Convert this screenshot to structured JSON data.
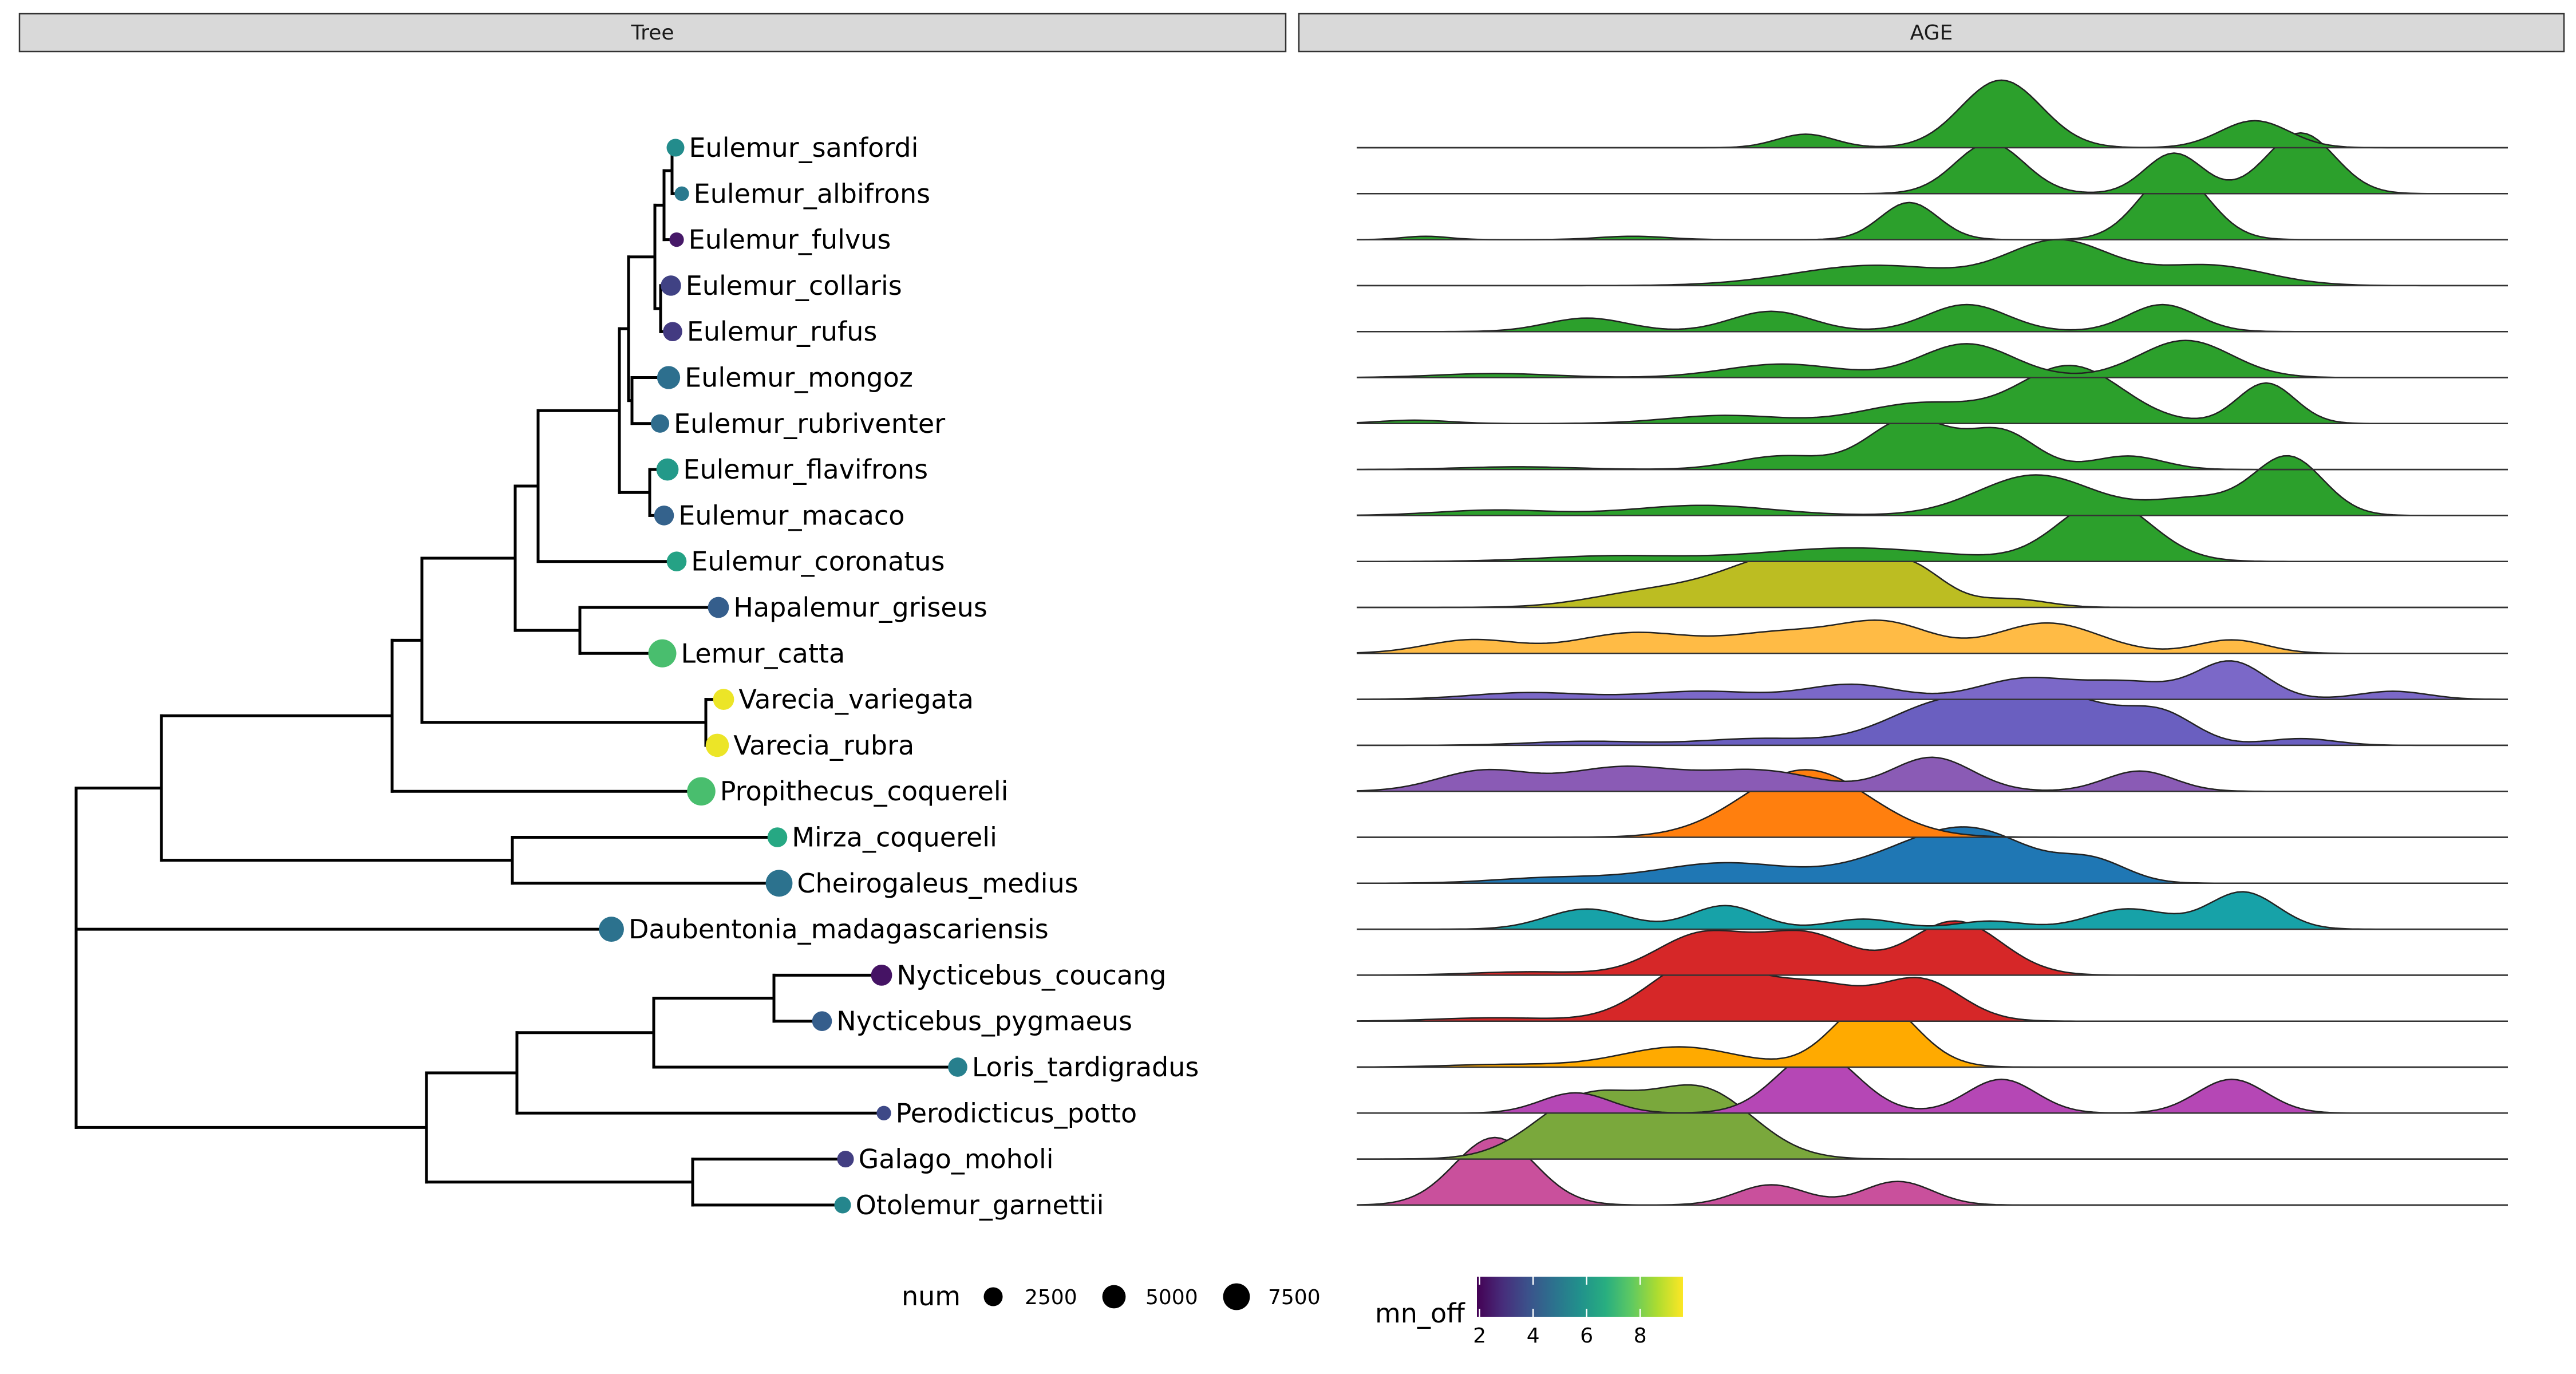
{
  "chart_data": {
    "type": "tree-ridgeline",
    "panels": [
      "Tree",
      "AGE"
    ],
    "tips": [
      {
        "label": "Eulemur_sanfordi",
        "mn_off": 5.6,
        "num": 1300,
        "density_color": "#2ca02c",
        "peaks": [
          [
            0.39,
            0.2,
            0.025
          ],
          [
            0.56,
            1.0,
            0.035
          ],
          [
            0.78,
            0.4,
            0.03
          ]
        ]
      },
      {
        "label": "Eulemur_albifrons",
        "mn_off": 5.0,
        "num": 500,
        "density_color": "#2ca02c",
        "peaks": [
          [
            0.55,
            0.75,
            0.03
          ],
          [
            0.71,
            0.6,
            0.025
          ],
          [
            0.82,
            0.9,
            0.03
          ]
        ]
      },
      {
        "label": "Eulemur_fulvus",
        "mn_off": 2.4,
        "num": 500,
        "density_color": "#2ca02c",
        "peaks": [
          [
            0.06,
            0.05,
            0.02
          ],
          [
            0.24,
            0.05,
            0.03
          ],
          [
            0.48,
            0.55,
            0.025
          ],
          [
            0.71,
            1.0,
            0.03
          ]
        ]
      },
      {
        "label": "Eulemur_collaris",
        "mn_off": 3.4,
        "num": 2200,
        "density_color": "#2ca02c",
        "peaks": [
          [
            0.45,
            0.3,
            0.07
          ],
          [
            0.61,
            0.65,
            0.045
          ],
          [
            0.74,
            0.3,
            0.05
          ]
        ]
      },
      {
        "label": "Eulemur_rufus",
        "mn_off": 3.2,
        "num": 1800,
        "density_color": "#2ca02c",
        "peaks": [
          [
            0.2,
            0.2,
            0.035
          ],
          [
            0.36,
            0.3,
            0.035
          ],
          [
            0.53,
            0.4,
            0.035
          ],
          [
            0.7,
            0.4,
            0.03
          ]
        ]
      },
      {
        "label": "Eulemur_mongoz",
        "mn_off": 4.7,
        "num": 3400,
        "density_color": "#2ca02c",
        "peaks": [
          [
            0.12,
            0.06,
            0.05
          ],
          [
            0.37,
            0.2,
            0.05
          ],
          [
            0.53,
            0.5,
            0.04
          ],
          [
            0.72,
            0.55,
            0.04
          ]
        ]
      },
      {
        "label": "Eulemur_rubriventer",
        "mn_off": 4.6,
        "num": 1500,
        "density_color": "#2ca02c",
        "peaks": [
          [
            0.05,
            0.05,
            0.03
          ],
          [
            0.32,
            0.12,
            0.05
          ],
          [
            0.49,
            0.3,
            0.05
          ],
          [
            0.62,
            0.85,
            0.045
          ],
          [
            0.79,
            0.6,
            0.025
          ]
        ]
      },
      {
        "label": "Eulemur_flavifrons",
        "mn_off": 6.0,
        "num": 3000,
        "density_color": "#2ca02c",
        "peaks": [
          [
            0.14,
            0.04,
            0.05
          ],
          [
            0.37,
            0.2,
            0.04
          ],
          [
            0.48,
            0.75,
            0.035
          ],
          [
            0.56,
            0.55,
            0.03
          ],
          [
            0.67,
            0.2,
            0.03
          ]
        ]
      },
      {
        "label": "Eulemur_macaco",
        "mn_off": 4.3,
        "num": 2000,
        "density_color": "#2ca02c",
        "peaks": [
          [
            0.12,
            0.08,
            0.05
          ],
          [
            0.3,
            0.15,
            0.06
          ],
          [
            0.59,
            0.6,
            0.05
          ],
          [
            0.73,
            0.25,
            0.04
          ],
          [
            0.81,
            0.85,
            0.03
          ]
        ]
      },
      {
        "label": "Eulemur_coronatus",
        "mn_off": 6.3,
        "num": 2000,
        "density_color": "#2ca02c",
        "peaks": [
          [
            0.22,
            0.08,
            0.06
          ],
          [
            0.43,
            0.2,
            0.08
          ],
          [
            0.65,
            0.9,
            0.04
          ]
        ]
      },
      {
        "label": "Hapalemur_griseus",
        "mn_off": 4.2,
        "num": 2500,
        "density_color": "#bcbd22",
        "peaks": [
          [
            0.25,
            0.2,
            0.05
          ],
          [
            0.38,
            0.8,
            0.06
          ],
          [
            0.48,
            0.5,
            0.03
          ],
          [
            0.57,
            0.12,
            0.03
          ]
        ]
      },
      {
        "label": "Lemur_catta",
        "mn_off": 7.3,
        "num": 6300,
        "density_color": "#ffbb45",
        "peaks": [
          [
            0.1,
            0.2,
            0.04
          ],
          [
            0.24,
            0.3,
            0.05
          ],
          [
            0.37,
            0.3,
            0.05
          ],
          [
            0.46,
            0.42,
            0.04
          ],
          [
            0.6,
            0.45,
            0.045
          ],
          [
            0.76,
            0.2,
            0.03
          ]
        ]
      },
      {
        "label": "Varecia_variegata",
        "mn_off": 9.4,
        "num": 2500,
        "density_color": "#7b68c8",
        "peaks": [
          [
            0.15,
            0.1,
            0.05
          ],
          [
            0.3,
            0.12,
            0.05
          ],
          [
            0.43,
            0.22,
            0.04
          ],
          [
            0.58,
            0.3,
            0.04
          ],
          [
            0.67,
            0.25,
            0.04
          ],
          [
            0.76,
            0.55,
            0.03
          ],
          [
            0.9,
            0.12,
            0.03
          ]
        ]
      },
      {
        "label": "Varecia_rubra",
        "mn_off": 9.4,
        "num": 3500,
        "density_color": "#6a5fc0",
        "peaks": [
          [
            0.2,
            0.06,
            0.05
          ],
          [
            0.35,
            0.1,
            0.05
          ],
          [
            0.51,
            0.6,
            0.05
          ],
          [
            0.61,
            0.7,
            0.05
          ],
          [
            0.7,
            0.4,
            0.03
          ],
          [
            0.82,
            0.1,
            0.03
          ]
        ]
      },
      {
        "label": "Propithecus_coquereli",
        "mn_off": 7.3,
        "num": 6500,
        "density_color": "#8a5bb5",
        "peaks": [
          [
            0.11,
            0.3,
            0.04
          ],
          [
            0.23,
            0.35,
            0.05
          ],
          [
            0.35,
            0.3,
            0.05
          ],
          [
            0.5,
            0.5,
            0.035
          ],
          [
            0.68,
            0.3,
            0.03
          ]
        ]
      },
      {
        "label": "Mirza_coquereli",
        "mn_off": 6.5,
        "num": 2000,
        "density_color": "#ff7f0e",
        "peaks": [
          [
            0.39,
            1.0,
            0.055
          ]
        ]
      },
      {
        "label": "Cheirogaleus_medius",
        "mn_off": 4.8,
        "num": 5500,
        "density_color": "#1f77b4",
        "peaks": [
          [
            0.17,
            0.08,
            0.05
          ],
          [
            0.32,
            0.3,
            0.06
          ],
          [
            0.47,
            0.3,
            0.05
          ],
          [
            0.54,
            0.7,
            0.05
          ],
          [
            0.64,
            0.3,
            0.03
          ]
        ]
      },
      {
        "label": "Daubentonia_madagascariensis",
        "mn_off": 4.8,
        "num": 4500,
        "density_color": "#17a2a8",
        "peaks": [
          [
            0.2,
            0.3,
            0.035
          ],
          [
            0.32,
            0.35,
            0.03
          ],
          [
            0.44,
            0.15,
            0.03
          ],
          [
            0.55,
            0.12,
            0.03
          ],
          [
            0.67,
            0.3,
            0.035
          ],
          [
            0.77,
            0.55,
            0.03
          ]
        ]
      },
      {
        "label": "Nycticebus_coucang",
        "mn_off": 2.3,
        "num": 2500,
        "density_color": "#d62728",
        "peaks": [
          [
            0.15,
            0.05,
            0.05
          ],
          [
            0.3,
            0.6,
            0.04
          ],
          [
            0.39,
            0.6,
            0.04
          ],
          [
            0.52,
            0.8,
            0.04
          ]
        ]
      },
      {
        "label": "Nycticebus_pygmaeus",
        "mn_off": 4.2,
        "num": 2000,
        "density_color": "#d62728",
        "peaks": [
          [
            0.12,
            0.05,
            0.05
          ],
          [
            0.3,
            0.9,
            0.045
          ],
          [
            0.4,
            0.5,
            0.04
          ],
          [
            0.49,
            0.6,
            0.035
          ]
        ]
      },
      {
        "label": "Loris_tardigradus",
        "mn_off": 5.2,
        "num": 1800,
        "density_color": "#ffaa00",
        "peaks": [
          [
            0.13,
            0.04,
            0.05
          ],
          [
            0.28,
            0.3,
            0.05
          ],
          [
            0.45,
            1.0,
            0.035
          ]
        ]
      },
      {
        "label": "Perodicticus_potto",
        "mn_off": 3.6,
        "num": 500,
        "density_color": "#b547b5",
        "peaks": [
          [
            0.19,
            0.3,
            0.03
          ],
          [
            0.4,
            0.9,
            0.035
          ],
          [
            0.56,
            0.5,
            0.03
          ],
          [
            0.76,
            0.5,
            0.03
          ]
        ]
      },
      {
        "label": "Galago_moholi",
        "mn_off": 3.3,
        "num": 1000,
        "density_color": "#7aa83c",
        "peaks": [
          [
            0.2,
            0.9,
            0.045
          ],
          [
            0.3,
            1.0,
            0.045
          ]
        ]
      },
      {
        "label": "Otolemur_garnettii",
        "mn_off": 5.4,
        "num": 1000,
        "density_color": "#c9509c",
        "peaks": [
          [
            0.12,
            1.0,
            0.035
          ],
          [
            0.36,
            0.3,
            0.03
          ],
          [
            0.47,
            0.35,
            0.03
          ]
        ]
      }
    ],
    "legend": {
      "size": {
        "title": "num",
        "labels": [
          "2500",
          "5000",
          "7500"
        ],
        "values": [
          2500,
          5000,
          7500
        ]
      },
      "color": {
        "title": "mn_off",
        "labels": [
          "2",
          "4",
          "6",
          "8"
        ],
        "values": [
          2,
          4,
          6,
          8
        ],
        "range": [
          1.9,
          9.6
        ],
        "scale": "viridis"
      }
    }
  }
}
